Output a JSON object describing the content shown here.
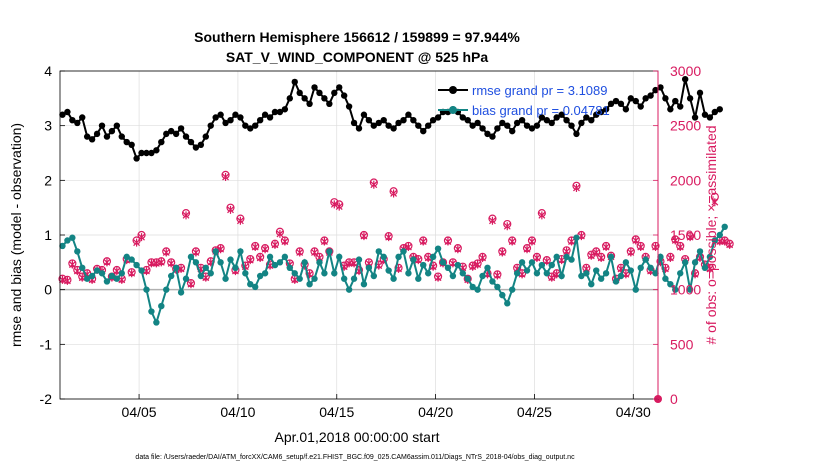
{
  "chart_data": {
    "type": "line",
    "title": "Southern Hemisphere 156612 / 159899 = 97.944%",
    "subtitle": "SAT_V_WIND_COMPONENT @ 525 hPa",
    "xlabel": "Apr.01,2018 00:00:00 start",
    "ylabel_left": "rmse and bias (model - observation)",
    "ylabel_right": "# of obs: o=possible; ×=assimilated",
    "footer": "data file: /Users/raeder/DAI/ATM_forcXX/CAM6_setup/f.e21.FHIST_BGC.f09_025.CAM6assim.011/Diags_NTrS_2018-04/obs_diag_output.nc",
    "xlim": [
      1.0,
      31.25
    ],
    "ylim_left": [
      -2,
      4
    ],
    "ylim_right": [
      0,
      3000
    ],
    "x_ticks": [
      5,
      10,
      15,
      20,
      25,
      30
    ],
    "x_tick_labels": [
      "04/05",
      "04/10",
      "04/15",
      "04/20",
      "04/25",
      "04/30"
    ],
    "y_ticks_left": [
      "-2",
      "-1",
      "0",
      "1",
      "2",
      "3",
      "4"
    ],
    "y_ticks_right": [
      "0",
      "500",
      "1000",
      "1500",
      "2000",
      "2500",
      "3000"
    ],
    "colors": {
      "rmse": "#000000",
      "bias": "#138484",
      "obs": "#d81b60",
      "zero": "#b0b0b0"
    },
    "legend": [
      {
        "name": "rmse grand pr = 3.1089",
        "color": "#000000"
      },
      {
        "name": "bias grand pr = 0.04781",
        "color": "#138484"
      }
    ],
    "series": [
      {
        "name": "rmse",
        "axis": "left",
        "values": [
          3.2,
          3.25,
          3.1,
          3.05,
          3.15,
          2.8,
          2.75,
          2.85,
          3.0,
          2.8,
          2.9,
          3.0,
          2.8,
          2.7,
          2.65,
          2.4,
          2.5,
          2.5,
          2.5,
          2.55,
          2.7,
          2.85,
          2.9,
          2.85,
          2.95,
          2.8,
          2.7,
          2.6,
          2.65,
          2.8,
          3.0,
          3.15,
          3.2,
          3.05,
          3.1,
          3.2,
          3.15,
          3.0,
          2.95,
          3.0,
          3.1,
          3.2,
          3.15,
          3.25,
          3.25,
          3.3,
          3.5,
          3.8,
          3.6,
          3.5,
          3.4,
          3.7,
          3.6,
          3.5,
          3.4,
          3.6,
          3.7,
          3.55,
          3.35,
          3.05,
          2.95,
          3.2,
          3.1,
          3.0,
          3.05,
          3.1,
          3.0,
          2.95,
          3.05,
          3.1,
          3.2,
          3.1,
          3.0,
          2.9,
          3.0,
          3.1,
          3.15,
          3.25,
          3.25,
          3.3,
          3.25,
          3.15,
          3.1,
          3.0,
          3.05,
          2.95,
          2.85,
          2.8,
          2.95,
          3.05,
          3.0,
          2.9,
          3.05,
          3.1,
          3.0,
          2.95,
          3.0,
          3.15,
          3.1,
          3.05,
          3.15,
          3.2,
          3.1,
          3.0,
          2.85,
          3.05,
          3.15,
          3.1,
          3.2,
          3.25,
          3.3,
          3.4,
          3.45,
          3.4,
          3.3,
          3.5,
          3.45,
          3.35,
          3.5,
          3.55,
          3.65,
          3.7,
          3.5,
          3.3,
          3.45,
          3.35,
          3.85,
          3.5,
          3.15,
          3.6,
          3.2,
          3.15,
          3.25,
          3.3
        ]
      },
      {
        "name": "bias",
        "axis": "left",
        "values": [
          0.8,
          0.9,
          0.95,
          0.7,
          0.4,
          0.2,
          0.25,
          0.35,
          0.3,
          0.15,
          0.25,
          0.2,
          0.3,
          0.6,
          0.55,
          0.45,
          0.35,
          0.0,
          -0.4,
          -0.6,
          -0.3,
          0.0,
          0.25,
          0.4,
          -0.05,
          0.2,
          0.6,
          0.5,
          0.25,
          0.4,
          0.3,
          0.7,
          0.5,
          0.2,
          0.55,
          0.4,
          0.7,
          0.3,
          0.1,
          0.05,
          0.25,
          0.3,
          0.6,
          0.45,
          0.5,
          0.6,
          0.4,
          0.3,
          0.2,
          0.5,
          0.1,
          0.2,
          0.5,
          0.3,
          0.7,
          0.3,
          0.6,
          0.2,
          0.0,
          0.2,
          0.55,
          0.1,
          0.4,
          0.25,
          0.7,
          0.6,
          0.35,
          0.2,
          0.6,
          0.7,
          0.3,
          0.55,
          0.2,
          0.45,
          0.3,
          0.6,
          0.75,
          0.5,
          0.4,
          0.25,
          0.45,
          0.3,
          0.2,
          0.05,
          0.0,
          0.25,
          0.4,
          0.15,
          0.05,
          -0.1,
          -0.25,
          0.0,
          0.3,
          0.5,
          0.35,
          0.5,
          0.3,
          0.45,
          0.3,
          0.45,
          0.6,
          0.25,
          0.6,
          0.55,
          0.95,
          0.25,
          0.3,
          0.1,
          0.35,
          0.2,
          0.3,
          0.6,
          0.15,
          0.25,
          0.5,
          0.35,
          0.0,
          0.4,
          0.55,
          0.4,
          0.3,
          0.6,
          0.2,
          0.1,
          0.0,
          0.3,
          0.5,
          0.0,
          0.5,
          0.7,
          0.4,
          0.6,
          0.9,
          1.0,
          1.15
        ]
      },
      {
        "name": "possible",
        "axis": "right",
        "values": [
          1100,
          1090,
          1240,
          1180,
          1120,
          1150,
          1100,
          1190,
          1180,
          1260,
          1120,
          1180,
          1100,
          1280,
          1160,
          1450,
          1500,
          1180,
          1250,
          1250,
          1260,
          1350,
          1250,
          1190,
          1200,
          1700,
          1060,
          1350,
          1200,
          1120,
          1260,
          1360,
          1380,
          2050,
          1750,
          1180,
          1650,
          1220,
          1280,
          1400,
          1300,
          1380,
          1230,
          1420,
          1530,
          1450,
          1240,
          1100,
          1350,
          1230,
          1150,
          1350,
          1300,
          1450,
          1350,
          1800,
          1780,
          1220,
          1250,
          1250,
          1180,
          1500,
          1250,
          1980,
          1230,
          1280,
          1490,
          1900,
          1200,
          1380,
          1400,
          1300,
          1280,
          1450,
          1300,
          1220,
          1120,
          1250,
          1450,
          1250,
          1380,
          1210,
          1100,
          1220,
          1240,
          1300,
          1150,
          1650,
          1140,
          1350,
          1600,
          1450,
          1200,
          1150,
          1380,
          1450,
          1300,
          1700,
          1270,
          1120,
          1150,
          1280,
          1360,
          1450,
          1950,
          1500,
          1200,
          1320,
          1350,
          1300,
          1400,
          1310,
          1100,
          1200,
          1150,
          1350,
          1460,
          1400,
          1300,
          1180,
          1400,
          1260,
          1200,
          1300,
          1460,
          1400,
          1280,
          1490,
          1150,
          1300,
          1230,
          1200,
          1850,
          1450,
          1450,
          1420
        ]
      },
      {
        "name": "assimilated",
        "axis": "right",
        "values": [
          1090,
          1080,
          1230,
          1170,
          1110,
          1140,
          1090,
          1180,
          1170,
          1250,
          1110,
          1170,
          1090,
          1270,
          1150,
          1430,
          1480,
          1170,
          1240,
          1240,
          1250,
          1340,
          1240,
          1180,
          1190,
          1680,
          1050,
          1340,
          1190,
          1110,
          1250,
          1350,
          1370,
          2030,
          1730,
          1170,
          1630,
          1210,
          1270,
          1390,
          1290,
          1370,
          1220,
          1410,
          1510,
          1440,
          1230,
          1090,
          1340,
          1220,
          1140,
          1340,
          1290,
          1440,
          1340,
          1780,
          1760,
          1210,
          1240,
          1240,
          1170,
          1490,
          1240,
          1960,
          1220,
          1270,
          1480,
          1880,
          1190,
          1370,
          1390,
          1290,
          1270,
          1440,
          1290,
          1210,
          1110,
          1240,
          1440,
          1240,
          1370,
          1200,
          1090,
          1210,
          1230,
          1290,
          1140,
          1630,
          1130,
          1340,
          1580,
          1440,
          1190,
          1140,
          1370,
          1440,
          1290,
          1680,
          1260,
          1110,
          1140,
          1270,
          1350,
          1440,
          1930,
          1490,
          1190,
          1310,
          1340,
          1290,
          1390,
          1300,
          1090,
          1190,
          1140,
          1340,
          1450,
          1390,
          1290,
          1170,
          1390,
          1250,
          1190,
          1290,
          1450,
          1390,
          1270,
          1480,
          1140,
          1290,
          1220,
          1190,
          1800,
          1440,
          1440,
          1410
        ]
      }
    ]
  }
}
